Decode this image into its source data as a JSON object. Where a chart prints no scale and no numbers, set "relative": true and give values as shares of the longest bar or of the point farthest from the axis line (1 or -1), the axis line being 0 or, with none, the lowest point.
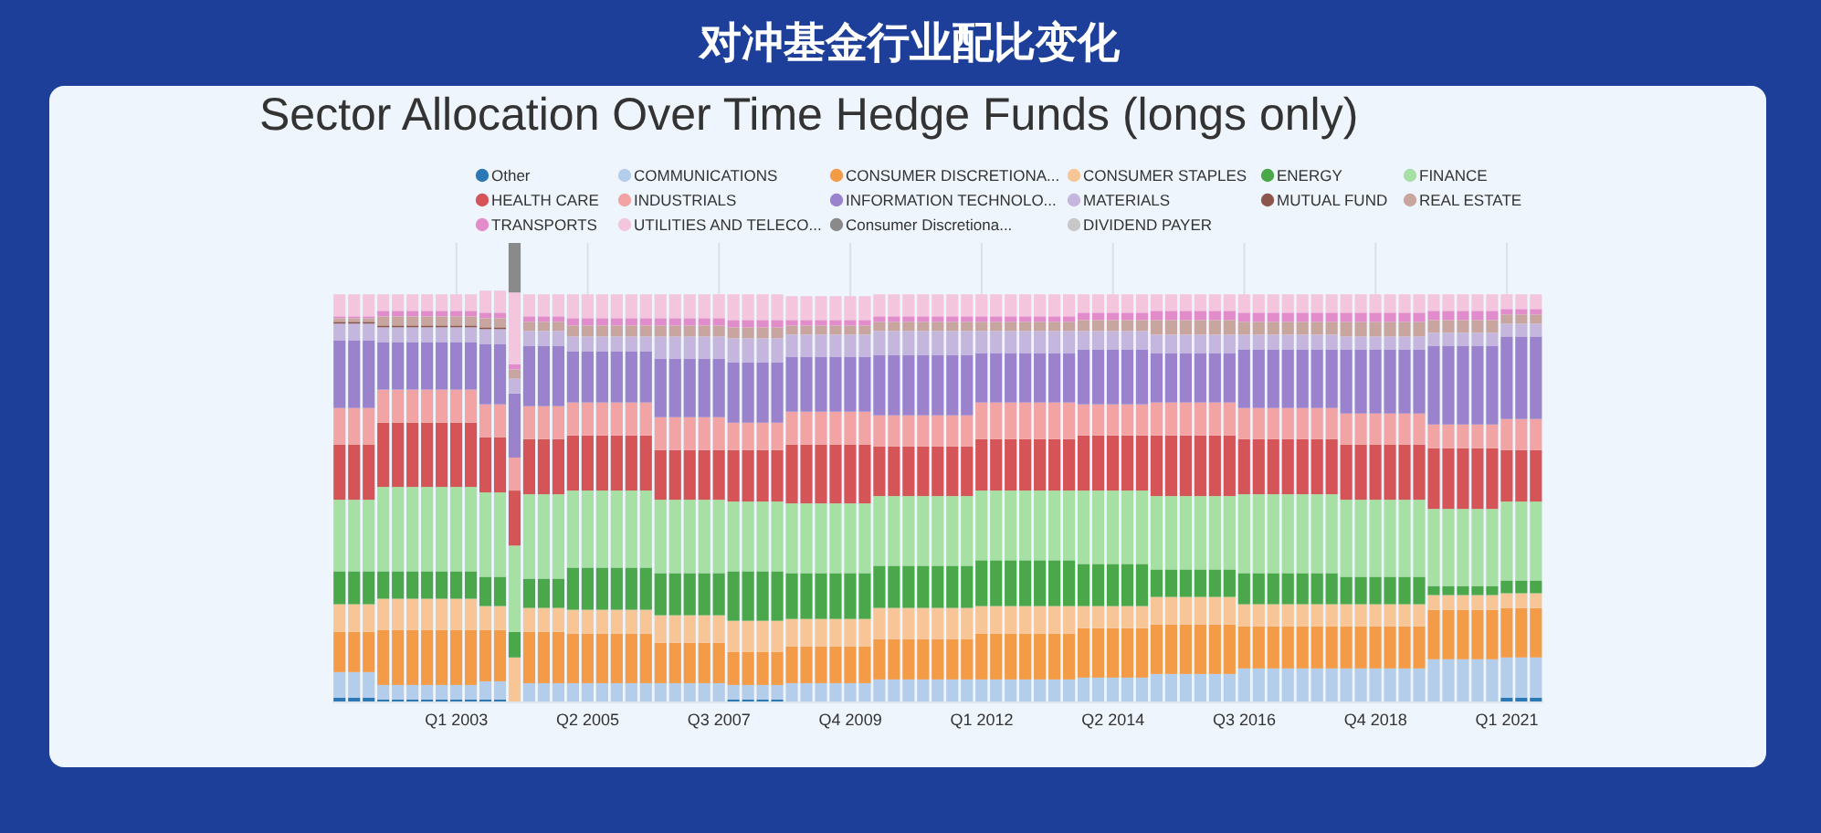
{
  "chart_data": {
    "type": "bar",
    "stacked": true,
    "relative": true,
    "grid": "x",
    "legend": "top",
    "title": "对冲基金行业配比变化",
    "subtitle": "Sector Allocation Over Time Hedge Funds (longs only)",
    "categories": [
      null,
      null,
      null,
      null,
      null,
      null,
      null,
      null,
      "Q1 2003",
      null,
      null,
      null,
      null,
      null,
      null,
      null,
      null,
      "Q2 2005",
      null,
      null,
      null,
      null,
      null,
      null,
      null,
      null,
      "Q3 2007",
      null,
      null,
      null,
      null,
      null,
      null,
      null,
      null,
      "Q4 2009",
      null,
      null,
      null,
      null,
      null,
      null,
      null,
      null,
      "Q1 2012",
      null,
      null,
      null,
      null,
      null,
      null,
      null,
      null,
      "Q2 2014",
      null,
      null,
      null,
      null,
      null,
      null,
      null,
      null,
      "Q3 2016",
      null,
      null,
      null,
      null,
      null,
      null,
      null,
      null,
      "Q4 2018",
      null,
      null,
      null,
      null,
      null,
      null,
      null,
      null,
      "Q1 2021",
      null,
      null
    ],
    "series": [
      {
        "name": "Other",
        "color": "#2a79b5",
        "values": [
          0.008,
          0.008,
          0.008,
          0.004,
          0.004,
          0.004,
          0.004,
          0.004,
          0.004,
          0.004,
          0.004,
          0.004,
          null,
          null,
          null,
          null,
          null,
          null,
          null,
          null,
          null,
          null,
          null,
          null,
          null,
          null,
          null,
          0.004,
          0.004,
          0.004,
          0.004,
          null,
          null,
          null,
          null,
          null,
          null,
          null,
          null,
          null,
          null,
          null,
          null,
          null,
          null,
          null,
          null,
          null,
          null,
          null,
          null,
          null,
          null,
          null,
          null,
          null,
          null,
          null,
          null,
          null,
          null,
          null,
          null,
          null,
          null,
          null,
          null,
          null,
          null,
          null,
          null,
          null,
          null,
          null,
          null,
          null,
          null,
          null,
          null,
          null,
          0.008,
          0.008,
          0.008
        ]
      },
      {
        "name": "COMMUNICATIONS",
        "color": "#b3cdea",
        "values": [
          0.056,
          0.056,
          0.056,
          0.032,
          0.032,
          0.032,
          0.032,
          0.032,
          0.032,
          0.032,
          0.04,
          0.04,
          null,
          0.04,
          0.04,
          0.04,
          0.04,
          0.04,
          0.04,
          0.04,
          0.04,
          0.04,
          0.04,
          0.04,
          0.04,
          0.04,
          0.04,
          0.032,
          0.032,
          0.032,
          0.032,
          0.04,
          0.04,
          0.04,
          0.04,
          0.04,
          0.04,
          0.048,
          0.048,
          0.048,
          0.048,
          0.048,
          0.048,
          0.048,
          0.048,
          0.048,
          0.048,
          0.048,
          0.048,
          0.048,
          0.048,
          0.052,
          0.052,
          0.052,
          0.052,
          0.052,
          0.06,
          0.06,
          0.06,
          0.06,
          0.06,
          0.06,
          0.072,
          0.072,
          0.072,
          0.072,
          0.072,
          0.072,
          0.072,
          0.072,
          0.072,
          0.072,
          0.072,
          0.072,
          0.072,
          0.092,
          0.092,
          0.092,
          0.092,
          0.092,
          0.088,
          0.088,
          0.088
        ]
      },
      {
        "name": "CONSUMER DISCRETIONA...",
        "color": "#f39b47",
        "values": [
          0.088,
          0.088,
          0.088,
          0.12,
          0.12,
          0.12,
          0.12,
          0.12,
          0.12,
          0.12,
          0.112,
          0.112,
          null,
          0.112,
          0.112,
          0.112,
          0.108,
          0.108,
          0.108,
          0.108,
          0.108,
          0.108,
          0.088,
          0.088,
          0.088,
          0.088,
          0.088,
          0.072,
          0.072,
          0.072,
          0.072,
          0.08,
          0.08,
          0.08,
          0.08,
          0.08,
          0.08,
          0.088,
          0.088,
          0.088,
          0.088,
          0.088,
          0.088,
          0.088,
          0.1,
          0.1,
          0.1,
          0.1,
          0.1,
          0.1,
          0.1,
          0.108,
          0.108,
          0.108,
          0.108,
          0.108,
          0.108,
          0.108,
          0.108,
          0.108,
          0.108,
          0.108,
          0.092,
          0.092,
          0.092,
          0.092,
          0.092,
          0.092,
          0.092,
          0.092,
          0.092,
          0.092,
          0.092,
          0.092,
          0.092,
          0.108,
          0.108,
          0.108,
          0.108,
          0.108,
          0.108,
          0.108,
          0.108
        ]
      },
      {
        "name": "CONSUMER STAPLES",
        "color": "#f8c597",
        "values": [
          0.06,
          0.06,
          0.06,
          0.068,
          0.068,
          0.068,
          0.068,
          0.068,
          0.068,
          0.068,
          0.052,
          0.052,
          0.096,
          0.052,
          0.052,
          0.052,
          0.052,
          0.052,
          0.052,
          0.052,
          0.052,
          0.052,
          0.06,
          0.06,
          0.06,
          0.06,
          0.06,
          0.068,
          0.068,
          0.068,
          0.068,
          0.06,
          0.06,
          0.06,
          0.06,
          0.06,
          0.06,
          0.068,
          0.068,
          0.068,
          0.068,
          0.068,
          0.068,
          0.068,
          0.06,
          0.06,
          0.06,
          0.06,
          0.06,
          0.06,
          0.06,
          0.048,
          0.048,
          0.048,
          0.048,
          0.048,
          0.06,
          0.06,
          0.06,
          0.06,
          0.06,
          0.06,
          0.048,
          0.048,
          0.048,
          0.048,
          0.048,
          0.048,
          0.048,
          0.048,
          0.048,
          0.048,
          0.048,
          0.048,
          0.048,
          0.032,
          0.032,
          0.032,
          0.032,
          0.032,
          0.032,
          0.032,
          0.032
        ]
      },
      {
        "name": "ENERGY",
        "color": "#4aa74a",
        "values": [
          0.072,
          0.072,
          0.072,
          0.06,
          0.06,
          0.06,
          0.06,
          0.06,
          0.06,
          0.06,
          0.064,
          0.064,
          0.056,
          0.064,
          0.064,
          0.064,
          0.092,
          0.092,
          0.092,
          0.092,
          0.092,
          0.092,
          0.092,
          0.092,
          0.092,
          0.092,
          0.092,
          0.108,
          0.108,
          0.108,
          0.108,
          0.1,
          0.1,
          0.1,
          0.1,
          0.1,
          0.1,
          0.092,
          0.092,
          0.092,
          0.092,
          0.092,
          0.092,
          0.092,
          0.1,
          0.1,
          0.1,
          0.1,
          0.1,
          0.1,
          0.1,
          0.092,
          0.092,
          0.092,
          0.092,
          0.092,
          0.06,
          0.06,
          0.06,
          0.06,
          0.06,
          0.06,
          0.068,
          0.068,
          0.068,
          0.068,
          0.068,
          0.068,
          0.068,
          0.06,
          0.06,
          0.06,
          0.06,
          0.06,
          0.06,
          0.02,
          0.02,
          0.02,
          0.02,
          0.02,
          0.028,
          0.028,
          0.028
        ]
      },
      {
        "name": "FINANCE",
        "color": "#a6e0a4",
        "values": [
          0.156,
          0.156,
          0.156,
          0.184,
          0.184,
          0.184,
          0.184,
          0.184,
          0.184,
          0.184,
          0.184,
          0.184,
          0.188,
          0.184,
          0.184,
          0.184,
          0.168,
          0.168,
          0.168,
          0.168,
          0.168,
          0.168,
          0.16,
          0.16,
          0.16,
          0.16,
          0.16,
          0.152,
          0.152,
          0.152,
          0.152,
          0.152,
          0.152,
          0.152,
          0.152,
          0.152,
          0.152,
          0.152,
          0.152,
          0.152,
          0.152,
          0.152,
          0.152,
          0.152,
          0.152,
          0.152,
          0.152,
          0.152,
          0.152,
          0.152,
          0.152,
          0.16,
          0.16,
          0.16,
          0.16,
          0.16,
          0.16,
          0.16,
          0.16,
          0.16,
          0.16,
          0.16,
          0.172,
          0.172,
          0.172,
          0.172,
          0.172,
          0.172,
          0.172,
          0.168,
          0.168,
          0.168,
          0.168,
          0.168,
          0.168,
          0.168,
          0.168,
          0.168,
          0.168,
          0.168,
          0.172,
          0.172,
          0.172
        ]
      },
      {
        "name": "HEALTH CARE",
        "color": "#d45458",
        "values": [
          0.12,
          0.12,
          0.12,
          0.14,
          0.14,
          0.14,
          0.14,
          0.14,
          0.14,
          0.14,
          0.12,
          0.12,
          0.12,
          0.12,
          0.12,
          0.12,
          0.12,
          0.12,
          0.12,
          0.12,
          0.12,
          0.12,
          0.108,
          0.108,
          0.108,
          0.108,
          0.108,
          0.112,
          0.112,
          0.112,
          0.112,
          0.128,
          0.128,
          0.128,
          0.128,
          0.128,
          0.128,
          0.108,
          0.108,
          0.108,
          0.108,
          0.108,
          0.108,
          0.108,
          0.112,
          0.112,
          0.112,
          0.112,
          0.112,
          0.112,
          0.112,
          0.12,
          0.12,
          0.12,
          0.12,
          0.12,
          0.132,
          0.132,
          0.132,
          0.132,
          0.132,
          0.132,
          0.12,
          0.12,
          0.12,
          0.12,
          0.12,
          0.12,
          0.12,
          0.12,
          0.12,
          0.12,
          0.12,
          0.12,
          0.12,
          0.132,
          0.132,
          0.132,
          0.132,
          0.132,
          0.112,
          0.112,
          0.112
        ]
      },
      {
        "name": "INDUSTRIALS",
        "color": "#f2a3a3",
        "values": [
          0.08,
          0.08,
          0.08,
          0.072,
          0.072,
          0.072,
          0.072,
          0.072,
          0.072,
          0.072,
          0.072,
          0.072,
          0.072,
          0.072,
          0.072,
          0.072,
          0.072,
          0.072,
          0.072,
          0.072,
          0.072,
          0.072,
          0.072,
          0.072,
          0.072,
          0.072,
          0.072,
          0.06,
          0.06,
          0.06,
          0.06,
          0.072,
          0.072,
          0.072,
          0.072,
          0.072,
          0.072,
          0.068,
          0.068,
          0.068,
          0.068,
          0.068,
          0.068,
          0.068,
          0.08,
          0.08,
          0.08,
          0.08,
          0.08,
          0.08,
          0.08,
          0.068,
          0.068,
          0.068,
          0.068,
          0.068,
          0.072,
          0.072,
          0.072,
          0.072,
          0.072,
          0.072,
          0.068,
          0.068,
          0.068,
          0.068,
          0.068,
          0.068,
          0.068,
          0.068,
          0.068,
          0.068,
          0.068,
          0.068,
          0.068,
          0.052,
          0.052,
          0.052,
          0.052,
          0.052,
          0.068,
          0.068,
          0.068
        ]
      },
      {
        "name": "INFORMATION TECHNOLO...",
        "color": "#9b82cc",
        "values": [
          0.148,
          0.148,
          0.148,
          0.104,
          0.104,
          0.104,
          0.104,
          0.104,
          0.104,
          0.104,
          0.132,
          0.132,
          0.14,
          0.132,
          0.132,
          0.132,
          0.112,
          0.112,
          0.112,
          0.112,
          0.112,
          0.112,
          0.128,
          0.128,
          0.128,
          0.128,
          0.128,
          0.132,
          0.132,
          0.132,
          0.132,
          0.12,
          0.12,
          0.12,
          0.12,
          0.12,
          0.12,
          0.132,
          0.132,
          0.132,
          0.132,
          0.132,
          0.132,
          0.132,
          0.108,
          0.108,
          0.108,
          0.108,
          0.108,
          0.108,
          0.108,
          0.12,
          0.12,
          0.12,
          0.12,
          0.12,
          0.108,
          0.108,
          0.108,
          0.108,
          0.108,
          0.108,
          0.128,
          0.128,
          0.128,
          0.128,
          0.128,
          0.128,
          0.128,
          0.14,
          0.14,
          0.14,
          0.14,
          0.14,
          0.14,
          0.172,
          0.172,
          0.172,
          0.172,
          0.172,
          0.18,
          0.18,
          0.18
        ]
      },
      {
        "name": "MATERIALS",
        "color": "#c5b6de",
        "values": [
          0.036,
          0.036,
          0.036,
          0.032,
          0.032,
          0.032,
          0.032,
          0.032,
          0.032,
          0.032,
          0.032,
          0.032,
          0.032,
          0.032,
          0.032,
          0.032,
          0.032,
          0.032,
          0.032,
          0.032,
          0.032,
          0.032,
          0.048,
          0.048,
          0.048,
          0.048,
          0.048,
          0.052,
          0.052,
          0.052,
          0.052,
          0.048,
          0.048,
          0.048,
          0.048,
          0.048,
          0.048,
          0.052,
          0.052,
          0.052,
          0.052,
          0.052,
          0.052,
          0.052,
          0.048,
          0.048,
          0.048,
          0.048,
          0.048,
          0.048,
          0.048,
          0.04,
          0.04,
          0.04,
          0.04,
          0.04,
          0.04,
          0.04,
          0.04,
          0.04,
          0.04,
          0.04,
          0.032,
          0.032,
          0.032,
          0.032,
          0.032,
          0.032,
          0.032,
          0.028,
          0.028,
          0.028,
          0.028,
          0.028,
          0.028,
          0.028,
          0.028,
          0.028,
          0.028,
          0.028,
          0.028,
          0.028,
          0.028
        ]
      },
      {
        "name": "MUTUAL FUND",
        "color": "#8c564b",
        "values": [
          0.004,
          0.004,
          0.004,
          0.004,
          0.004,
          0.004,
          0.004,
          0.004,
          0.004,
          0.004,
          0.004,
          0.004,
          null,
          null,
          null,
          null,
          null,
          null,
          null,
          null,
          null,
          null,
          null,
          null,
          null,
          null,
          null,
          null,
          null,
          null,
          null,
          null,
          null,
          null,
          null,
          null,
          null,
          null,
          null,
          null,
          null,
          null,
          null,
          null,
          null,
          null,
          null,
          null,
          null,
          null,
          null,
          null,
          null,
          null,
          null,
          null,
          null,
          null,
          null,
          null,
          null,
          null,
          null,
          null,
          null,
          null,
          null,
          null,
          null,
          null,
          null,
          null,
          null,
          null,
          null,
          null,
          null,
          null,
          null,
          null,
          null,
          null,
          null
        ]
      },
      {
        "name": "REAL ESTATE",
        "color": "#c9a5a0",
        "values": [
          0.008,
          0.008,
          0.008,
          0.02,
          0.02,
          0.02,
          0.02,
          0.02,
          0.02,
          0.02,
          0.02,
          0.02,
          0.02,
          0.02,
          0.02,
          0.02,
          0.024,
          0.024,
          0.024,
          0.024,
          0.024,
          0.024,
          0.024,
          0.024,
          0.024,
          0.024,
          0.024,
          0.024,
          0.024,
          0.024,
          0.024,
          0.02,
          0.02,
          0.02,
          0.02,
          0.02,
          0.02,
          0.02,
          0.02,
          0.02,
          0.02,
          0.02,
          0.02,
          0.02,
          0.02,
          0.02,
          0.02,
          0.02,
          0.02,
          0.02,
          0.02,
          0.024,
          0.024,
          0.024,
          0.024,
          0.024,
          0.032,
          0.032,
          0.032,
          0.032,
          0.032,
          0.032,
          0.028,
          0.028,
          0.028,
          0.028,
          0.028,
          0.028,
          0.028,
          0.032,
          0.032,
          0.032,
          0.032,
          0.032,
          0.032,
          0.028,
          0.028,
          0.028,
          0.028,
          0.028,
          0.02,
          0.02,
          0.02
        ]
      },
      {
        "name": "TRANSPORTS",
        "color": "#e38ccc",
        "values": [
          0.004,
          0.004,
          0.004,
          0.012,
          0.012,
          0.012,
          0.012,
          0.012,
          0.012,
          0.012,
          0.012,
          0.012,
          0.012,
          0.012,
          0.012,
          0.012,
          0.016,
          0.016,
          0.016,
          0.016,
          0.016,
          0.016,
          0.016,
          0.016,
          0.016,
          0.016,
          0.016,
          0.016,
          0.016,
          0.016,
          0.016,
          0.012,
          0.012,
          0.012,
          0.012,
          0.012,
          0.012,
          0.012,
          0.012,
          0.012,
          0.012,
          0.012,
          0.012,
          0.012,
          0.012,
          0.012,
          0.012,
          0.012,
          0.012,
          0.012,
          0.012,
          0.016,
          0.016,
          0.016,
          0.016,
          0.016,
          0.02,
          0.02,
          0.02,
          0.02,
          0.02,
          0.02,
          0.02,
          0.02,
          0.02,
          0.02,
          0.02,
          0.02,
          0.02,
          0.02,
          0.02,
          0.02,
          0.02,
          0.02,
          0.02,
          0.02,
          0.02,
          0.02,
          0.02,
          0.02,
          0.012,
          0.012,
          0.012
        ]
      },
      {
        "name": "UTILITIES AND TELECO...",
        "color": "#f4c6dd",
        "values": [
          0.048,
          0.048,
          0.048,
          0.036,
          0.036,
          0.036,
          0.036,
          0.036,
          0.036,
          0.036,
          0.048,
          0.048,
          0.156,
          0.048,
          0.048,
          0.048,
          0.052,
          0.052,
          0.052,
          0.052,
          0.052,
          0.052,
          0.052,
          0.052,
          0.052,
          0.052,
          0.052,
          0.056,
          0.056,
          0.056,
          0.056,
          0.052,
          0.052,
          0.052,
          0.052,
          0.052,
          0.052,
          0.048,
          0.048,
          0.048,
          0.048,
          0.048,
          0.048,
          0.048,
          0.048,
          0.048,
          0.048,
          0.048,
          0.048,
          0.048,
          0.048,
          0.04,
          0.04,
          0.04,
          0.04,
          0.04,
          0.036,
          0.036,
          0.036,
          0.036,
          0.036,
          0.036,
          0.04,
          0.04,
          0.04,
          0.04,
          0.04,
          0.04,
          0.04,
          0.04,
          0.04,
          0.04,
          0.04,
          0.04,
          0.04,
          0.036,
          0.036,
          0.036,
          0.036,
          0.036,
          0.032,
          0.032,
          0.032
        ]
      },
      {
        "name": "Consumer Discretiona...",
        "color": "#8a8a8a",
        "values": [
          null,
          null,
          null,
          null,
          null,
          null,
          null,
          null,
          null,
          null,
          null,
          null,
          0.108,
          null,
          null,
          null,
          null,
          null,
          null,
          null,
          null,
          null,
          null,
          null,
          null,
          null,
          null,
          null,
          null,
          null,
          null,
          null,
          null,
          null,
          null,
          null,
          null,
          null,
          null,
          null,
          null,
          null,
          null,
          null,
          null,
          null,
          null,
          null,
          null,
          null,
          null,
          null,
          null,
          null,
          null,
          null,
          null,
          null,
          null,
          null,
          null,
          null,
          null,
          null,
          null,
          null,
          null,
          null,
          null,
          null,
          null,
          null,
          null,
          null,
          null,
          null,
          null,
          null,
          null,
          null,
          null,
          null,
          null
        ]
      },
      {
        "name": "DIVIDEND PAYER",
        "color": "#c7c7c7",
        "values": [
          null,
          null,
          null,
          null,
          null,
          null,
          null,
          null,
          null,
          null,
          null,
          null,
          null,
          null,
          null,
          null,
          null,
          null,
          null,
          null,
          null,
          null,
          null,
          null,
          null,
          null,
          null,
          null,
          null,
          null,
          null,
          null,
          null,
          null,
          null,
          null,
          null,
          null,
          null,
          null,
          null,
          null,
          null,
          null,
          null,
          null,
          null,
          null,
          null,
          null,
          null,
          null,
          null,
          null,
          null,
          null,
          null,
          null,
          null,
          null,
          null,
          null,
          null,
          null,
          null,
          null,
          null,
          null,
          null,
          null,
          null,
          null,
          null,
          null,
          null,
          null,
          null,
          null,
          null,
          null,
          null,
          null,
          null
        ]
      }
    ]
  }
}
